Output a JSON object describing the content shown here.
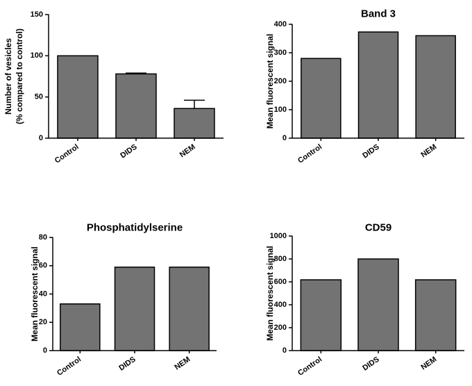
{
  "colors": {
    "bar_fill": "#737373",
    "stroke": "#000000",
    "background": "#ffffff"
  },
  "chart_data": [
    {
      "id": "vesicles",
      "type": "bar",
      "title": "",
      "ylabel_lines": [
        "Number of vesicles",
        "(% compared to control)"
      ],
      "xlabel": "",
      "categories": [
        "Control",
        "DIDS",
        "NEM"
      ],
      "values": [
        100,
        78,
        36
      ],
      "errors": [
        0,
        1,
        10
      ],
      "ylim": [
        0,
        150
      ],
      "yticks": [
        0,
        50,
        100,
        150
      ]
    },
    {
      "id": "band3",
      "type": "bar",
      "title": "Band 3",
      "ylabel_lines": [
        "Mean fluorescent signal"
      ],
      "xlabel": "",
      "categories": [
        "Control",
        "DIDS",
        "NEM"
      ],
      "values": [
        280,
        373,
        360
      ],
      "errors": [
        0,
        0,
        0
      ],
      "ylim": [
        0,
        400
      ],
      "yticks": [
        0,
        100,
        200,
        300,
        400
      ]
    },
    {
      "id": "phosphatidylserine",
      "type": "bar",
      "title": "Phosphatidylserine",
      "ylabel_lines": [
        "Mean fluorescent signal"
      ],
      "xlabel": "",
      "categories": [
        "Control",
        "DIDS",
        "NEM"
      ],
      "values": [
        33,
        59,
        59
      ],
      "errors": [
        0,
        0,
        0
      ],
      "ylim": [
        0,
        80
      ],
      "yticks": [
        0,
        20,
        40,
        60,
        80
      ]
    },
    {
      "id": "cd59",
      "type": "bar",
      "title": "CD59",
      "ylabel_lines": [
        "Mean fluorescent signal"
      ],
      "xlabel": "",
      "categories": [
        "Control",
        "DIDS",
        "NEM"
      ],
      "values": [
        618,
        800,
        618
      ],
      "errors": [
        0,
        0,
        0
      ],
      "ylim": [
        0,
        1000
      ],
      "yticks": [
        0,
        200,
        400,
        600,
        800,
        1000
      ]
    }
  ]
}
